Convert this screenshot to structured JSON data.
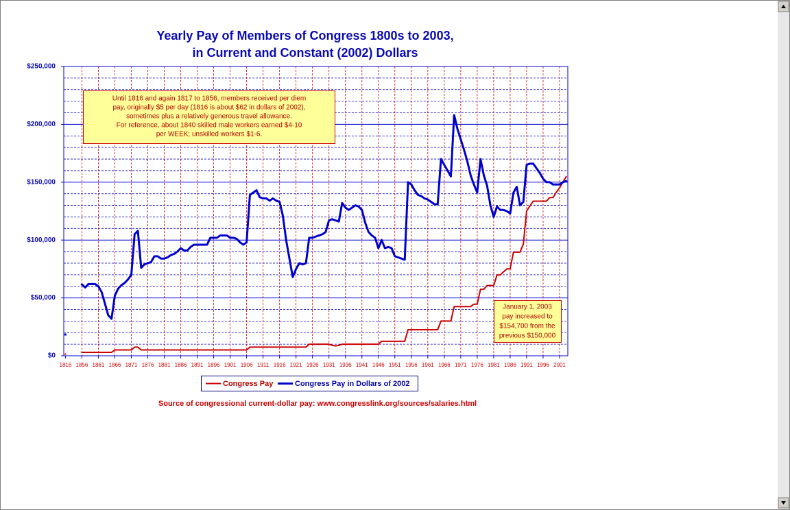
{
  "chart_data": {
    "type": "line",
    "title": [
      "Yearly Pay of Members of Congress 1800s to 2003,",
      "in Current and Constant (2002) Dollars"
    ],
    "categories": [
      "1816",
      null,
      null,
      null,
      null,
      "1856",
      null,
      null,
      null,
      null,
      "1861",
      null,
      null,
      null,
      null,
      "1866",
      null,
      null,
      null,
      null,
      "1871",
      null,
      null,
      null,
      null,
      "1876",
      null,
      null,
      null,
      null,
      "1881",
      null,
      null,
      null,
      null,
      "1886",
      null,
      null,
      null,
      null,
      "1891",
      null,
      null,
      null,
      null,
      "1896",
      null,
      null,
      null,
      null,
      "1901",
      null,
      null,
      null,
      null,
      "1906",
      null,
      null,
      null,
      null,
      "1911",
      null,
      null,
      null,
      null,
      "1916",
      null,
      null,
      null,
      null,
      "1921",
      null,
      null,
      null,
      null,
      "1926",
      null,
      null,
      null,
      null,
      "1931",
      null,
      null,
      null,
      null,
      "1936",
      null,
      null,
      null,
      null,
      "1941",
      null,
      null,
      null,
      null,
      "1946",
      null,
      null,
      null,
      null,
      "1951",
      null,
      null,
      null,
      null,
      "1956",
      null,
      null,
      null,
      null,
      "1961",
      null,
      null,
      null,
      null,
      "1966",
      null,
      null,
      null,
      null,
      "1971",
      null,
      null,
      null,
      null,
      "1976",
      null,
      null,
      null,
      null,
      "1981",
      null,
      null,
      null,
      null,
      "1986",
      null,
      null,
      null,
      null,
      "1991",
      null,
      null,
      null,
      null,
      "1996",
      null,
      null,
      null,
      null,
      "2001",
      null,
      null
    ],
    "series": [
      {
        "name": "Congress Pay",
        "color": "#cc0000",
        "values": [
          1500,
          null,
          null,
          null,
          null,
          3000,
          3000,
          3000,
          3000,
          3000,
          3000,
          3000,
          3000,
          3000,
          3000,
          5000,
          5000,
          5000,
          5000,
          5000,
          5000,
          7500,
          7500,
          5000,
          5000,
          5000,
          5000,
          5000,
          5000,
          5000,
          5000,
          5000,
          5000,
          5000,
          5000,
          5000,
          5000,
          5000,
          5000,
          5000,
          5000,
          5000,
          5000,
          5000,
          5000,
          5000,
          5000,
          5000,
          5000,
          5000,
          5000,
          5000,
          5000,
          5000,
          5000,
          5000,
          7500,
          7500,
          7500,
          7500,
          7500,
          7500,
          7500,
          7500,
          7500,
          7500,
          7500,
          7500,
          7500,
          7500,
          7500,
          7500,
          7500,
          7500,
          10000,
          10000,
          10000,
          10000,
          10000,
          10000,
          10000,
          9000,
          8500,
          9000,
          10000,
          10000,
          10000,
          10000,
          10000,
          10000,
          10000,
          10000,
          10000,
          10000,
          10000,
          10000,
          12500,
          12500,
          12500,
          12500,
          12500,
          12500,
          12500,
          12500,
          22500,
          22500,
          22500,
          22500,
          22500,
          22500,
          22500,
          22500,
          22500,
          22500,
          30000,
          30000,
          30000,
          30000,
          42500,
          42500,
          42500,
          42500,
          42500,
          42500,
          44600,
          44600,
          57500,
          57500,
          60700,
          60700,
          60700,
          69800,
          69800,
          72600,
          75100,
          75100,
          89500,
          89500,
          89500,
          96600,
          125100,
          129500,
          133600,
          133600,
          133600,
          133600,
          133600,
          136700,
          136700,
          141300,
          145100,
          150000,
          154700
        ]
      },
      {
        "name": "Congress Pay in Dollars of 2002",
        "color": "#0000cc",
        "values": [
          18400,
          null,
          null,
          null,
          null,
          61600,
          59000,
          62000,
          62000,
          62000,
          60000,
          55000,
          45000,
          35000,
          32000,
          52000,
          58000,
          61000,
          63000,
          66000,
          70000,
          105000,
          108000,
          76000,
          79000,
          80000,
          81000,
          86000,
          86000,
          84000,
          84000,
          85000,
          87000,
          88000,
          90000,
          93000,
          91000,
          91000,
          94000,
          96000,
          96000,
          96000,
          96000,
          96000,
          102000,
          102000,
          102000,
          104000,
          104000,
          104000,
          102000,
          102000,
          101000,
          98000,
          96000,
          98000,
          139000,
          141000,
          143000,
          137000,
          136000,
          136000,
          134000,
          136000,
          134000,
          133000,
          121000,
          100000,
          84000,
          68000,
          75000,
          80000,
          79000,
          80000,
          102000,
          102000,
          103000,
          104000,
          105000,
          107000,
          117000,
          118000,
          117000,
          116000,
          132000,
          128000,
          126000,
          128000,
          130000,
          129000,
          126000,
          115000,
          107000,
          104000,
          102000,
          93000,
          100000,
          93000,
          94000,
          93000,
          86000,
          85000,
          84000,
          83000,
          150000,
          148000,
          143000,
          139000,
          138000,
          136000,
          135000,
          133000,
          131000,
          131000,
          170000,
          165000,
          160000,
          155000,
          208000,
          196000,
          187000,
          178000,
          168000,
          156000,
          148000,
          141000,
          170000,
          156000,
          147000,
          130000,
          120000,
          129000,
          126000,
          126000,
          125000,
          123000,
          141000,
          146000,
          130000,
          133000,
          165000,
          166000,
          166000,
          162000,
          158000,
          153000,
          150000,
          150000,
          148000,
          148000,
          148000,
          150000,
          151000
        ]
      }
    ],
    "ylim": [
      0,
      250000
    ],
    "yticks": [
      {
        "value": 0,
        "label": "$0"
      },
      {
        "value": 50000,
        "label": "$50,000"
      },
      {
        "value": 100000,
        "label": "$100,000"
      },
      {
        "value": 150000,
        "label": "$150,000"
      },
      {
        "value": 200000,
        "label": "$200,000"
      },
      {
        "value": 250000,
        "label": "$250,000"
      }
    ],
    "grid": true,
    "legend": "bottom",
    "annotations": [
      {
        "lines": [
          "Until 1816 and again 1817 to 1856, members received per diem",
          "pay, originally $5 per day (1816 is about $62 in dollars of 2002),",
          "sometimes plus a relatively generous travel allowance.",
          "For reference, about 1840 skilled male workers earned $4-10",
          "per WEEK; unskilled workers $1-6."
        ]
      },
      {
        "lines": [
          "January 1, 2003",
          "pay increased to",
          "$154,700 from the",
          "previous $150,000"
        ]
      }
    ],
    "source": "Source of congressional current-dollar pay:  www.congresslink.org/sources/salaries.html"
  }
}
